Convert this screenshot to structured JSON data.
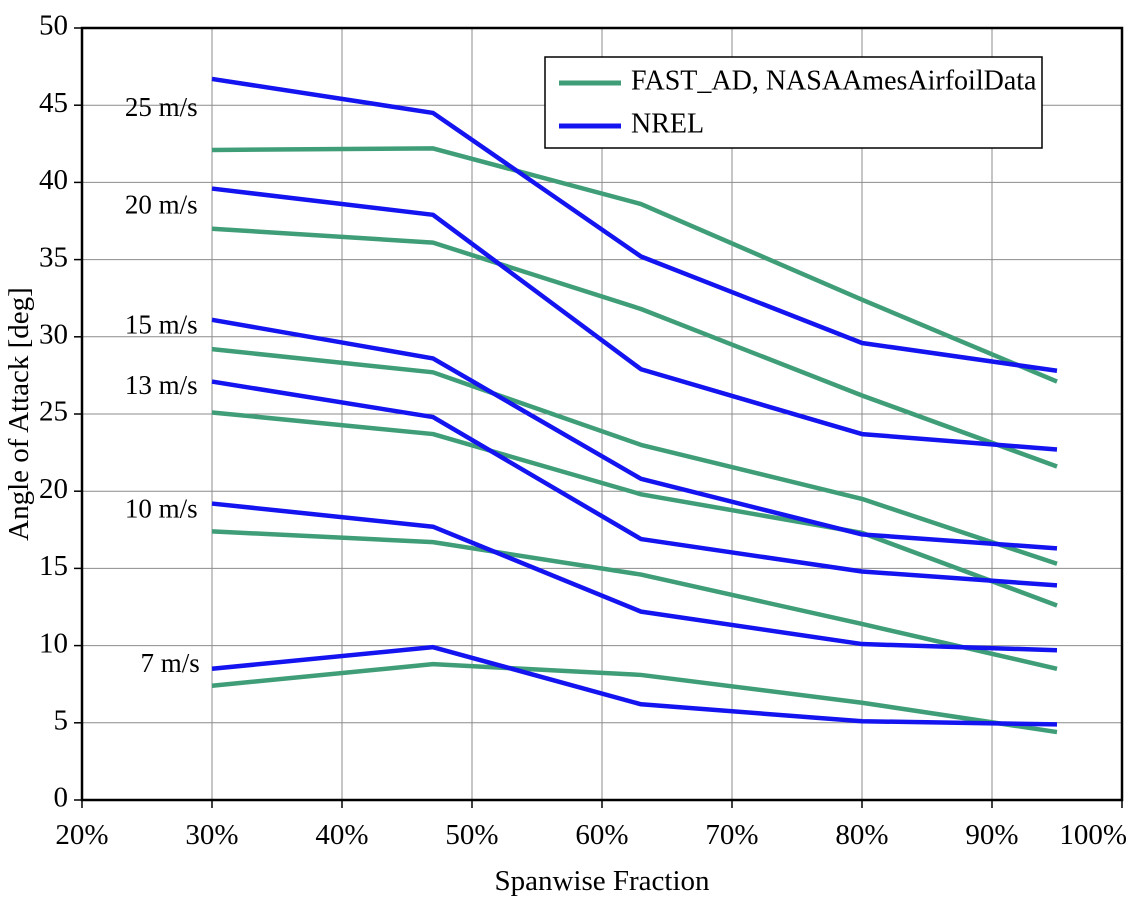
{
  "figure": {
    "background": "#ffffff"
  },
  "chart_data": {
    "type": "line",
    "title": "",
    "xlabel": "Spanwise Fraction",
    "ylabel": "Angle of Attack [deg]",
    "xlim_percent": [
      20,
      100
    ],
    "ylim": [
      0,
      50
    ],
    "x_ticks_percent": [
      20,
      30,
      40,
      50,
      60,
      70,
      80,
      90,
      100
    ],
    "x_tick_suffix": "%",
    "y_ticks": [
      0,
      5,
      10,
      15,
      20,
      25,
      30,
      35,
      40,
      45,
      50
    ],
    "grid": true,
    "legend_position": "top-center",
    "x_percent": [
      30,
      47,
      63,
      80,
      95
    ],
    "colors": {
      "fast_ad": "#3f9e78",
      "nrel": "#1414f0"
    },
    "legend": {
      "entries": [
        {
          "label": "FAST_AD, NASAAmesAirfoilData",
          "group": "fast_ad"
        },
        {
          "label": "NREL",
          "group": "nrel"
        }
      ]
    },
    "speed_labels": [
      {
        "text": "25 m/s",
        "x_percent": 23.3,
        "y": 44.7
      },
      {
        "text": "20 m/s",
        "x_percent": 23.3,
        "y": 38.4
      },
      {
        "text": "15 m/s",
        "x_percent": 23.3,
        "y": 30.6
      },
      {
        "text": "13 m/s",
        "x_percent": 23.3,
        "y": 26.7
      },
      {
        "text": "10 m/s",
        "x_percent": 23.3,
        "y": 18.7
      },
      {
        "text": "7 m/s",
        "x_percent": 24.5,
        "y": 8.7
      }
    ],
    "series": [
      {
        "name": "FAST_AD 25 m/s",
        "group": "fast_ad",
        "speed": "25 m/s",
        "values": [
          42.1,
          42.2,
          38.6,
          32.4,
          27.1
        ]
      },
      {
        "name": "FAST_AD 20 m/s",
        "group": "fast_ad",
        "speed": "20 m/s",
        "values": [
          37.0,
          36.1,
          31.8,
          26.2,
          21.6
        ]
      },
      {
        "name": "FAST_AD 15 m/s",
        "group": "fast_ad",
        "speed": "15 m/s",
        "values": [
          29.2,
          27.7,
          23.0,
          19.5,
          15.3
        ]
      },
      {
        "name": "FAST_AD 13 m/s",
        "group": "fast_ad",
        "speed": "13 m/s",
        "values": [
          25.1,
          23.7,
          19.8,
          17.3,
          12.6
        ]
      },
      {
        "name": "FAST_AD 10 m/s",
        "group": "fast_ad",
        "speed": "10 m/s",
        "values": [
          17.4,
          16.7,
          14.6,
          11.4,
          8.5
        ]
      },
      {
        "name": "FAST_AD 7 m/s",
        "group": "fast_ad",
        "speed": "7 m/s",
        "values": [
          7.4,
          8.8,
          8.1,
          6.3,
          4.4
        ]
      },
      {
        "name": "NREL 25 m/s",
        "group": "nrel",
        "speed": "25 m/s",
        "values": [
          46.7,
          44.5,
          35.2,
          29.6,
          27.8
        ]
      },
      {
        "name": "NREL 20 m/s",
        "group": "nrel",
        "speed": "20 m/s",
        "values": [
          39.6,
          37.9,
          27.9,
          23.7,
          22.7
        ]
      },
      {
        "name": "NREL 15 m/s",
        "group": "nrel",
        "speed": "15 m/s",
        "values": [
          31.1,
          28.6,
          20.8,
          17.2,
          16.3
        ]
      },
      {
        "name": "NREL 13 m/s",
        "group": "nrel",
        "speed": "13 m/s",
        "values": [
          27.1,
          24.8,
          16.9,
          14.8,
          13.9
        ]
      },
      {
        "name": "NREL 10 m/s",
        "group": "nrel",
        "speed": "10 m/s",
        "values": [
          19.2,
          17.7,
          12.2,
          10.1,
          9.7
        ]
      },
      {
        "name": "NREL 7 m/s",
        "group": "nrel",
        "speed": "7 m/s",
        "values": [
          8.5,
          9.9,
          6.2,
          5.1,
          4.9
        ]
      }
    ]
  }
}
